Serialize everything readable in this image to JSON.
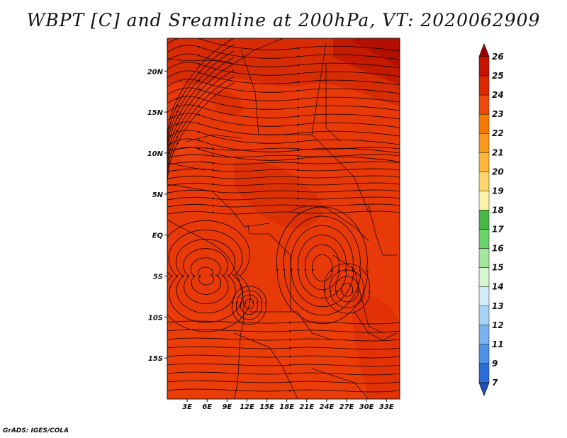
{
  "title": "WBPT [C] and Sreamline at 200hPa, VT: 2020062909",
  "credit": "GrADS: IGES/COLA",
  "map": {
    "lon_range": [
      0,
      35
    ],
    "lat_range": [
      -20,
      24
    ],
    "lon_ticks": [
      "3E",
      "6E",
      "9E",
      "12E",
      "15E",
      "18E",
      "21E",
      "24E",
      "27E",
      "30E",
      "33E"
    ],
    "lat_ticks": [
      "20N",
      "15N",
      "10N",
      "5N",
      "EQ",
      "5S",
      "10S",
      "15S"
    ]
  },
  "colorbar": {
    "labels": [
      "26",
      "25",
      "24",
      "23",
      "22",
      "21",
      "20",
      "19",
      "18",
      "17",
      "16",
      "15",
      "14",
      "13",
      "12",
      "11",
      "9",
      "7"
    ],
    "colors": [
      "#a50000",
      "#c41400",
      "#e02800",
      "#f04a10",
      "#f77a00",
      "#fb9a1c",
      "#fdb83a",
      "#fdd56a",
      "#fff3a8",
      "#46b843",
      "#6cd26a",
      "#a2e79d",
      "#d8f5d2",
      "#d4ecfb",
      "#a6d2f8",
      "#7ab4f0",
      "#4e92e6",
      "#2a6dd9",
      "#1f4fbf"
    ]
  }
}
